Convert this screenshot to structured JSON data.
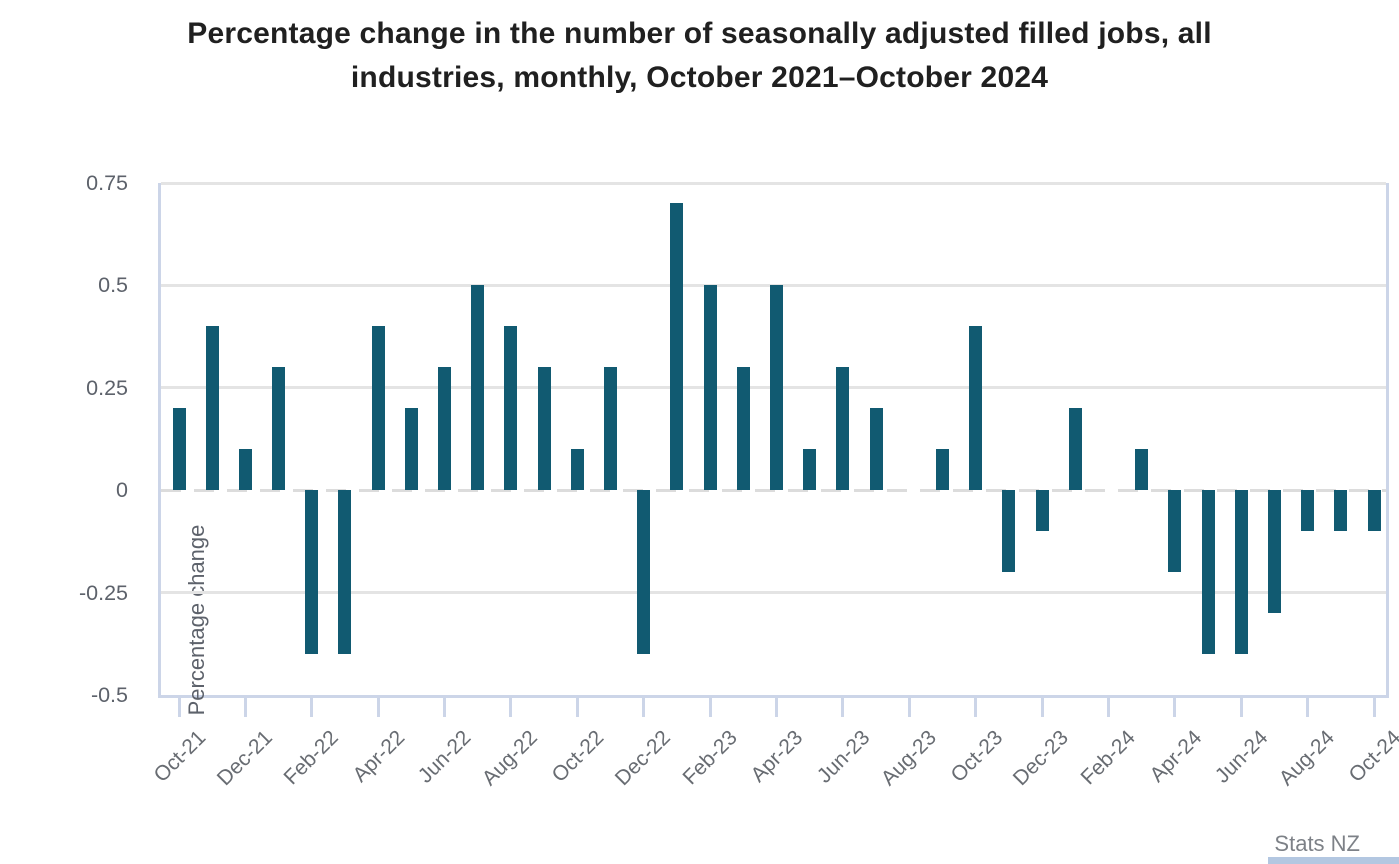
{
  "page": {
    "title_line1": "Percentage change in the number of seasonally adjusted filled jobs, all",
    "title_line2": "industries, monthly, October 2021–October 2024",
    "source": "Stats NZ"
  },
  "colors": {
    "bar": "#115a71",
    "axis": "#ccd5e8",
    "grid": "#e4e4e4",
    "zero_line": "#dcdcdc",
    "title": "#202020",
    "x_labels": "#686c72",
    "y_labels": "#5d626b",
    "source": "#7d8187",
    "logo_bar": "#b3c7e1"
  },
  "chart_data": {
    "type": "bar",
    "title": "Percentage change in the number of seasonally adjusted filled jobs, all industries, monthly, October 2021–October 2024",
    "xlabel": "",
    "ylabel": "Percentage change",
    "ylim": [
      -0.5,
      0.75
    ],
    "y_ticks": [
      0.75,
      0.5,
      0.25,
      0,
      -0.25,
      -0.5
    ],
    "grid": "horizontal, zero line dashed",
    "legend": "none",
    "x_tick_label_rotation": -45,
    "labeled_ticks_every": 2,
    "categories": [
      "Oct-21",
      "Nov-21",
      "Dec-21",
      "Jan-22",
      "Feb-22",
      "Mar-22",
      "Apr-22",
      "May-22",
      "Jun-22",
      "Jul-22",
      "Aug-22",
      "Sep-22",
      "Oct-22",
      "Nov-22",
      "Dec-22",
      "Jan-23",
      "Feb-23",
      "Mar-23",
      "Apr-23",
      "May-23",
      "Jun-23",
      "Jul-23",
      "Aug-23",
      "Sep-23",
      "Oct-23",
      "Nov-23",
      "Dec-23",
      "Jan-24",
      "Feb-24",
      "Mar-24",
      "Apr-24",
      "May-24",
      "Jun-24",
      "Jul-24",
      "Aug-24",
      "Sep-24",
      "Oct-24"
    ],
    "x_tick_labels": [
      "Oct-21",
      "Dec-21",
      "Feb-22",
      "Apr-22",
      "Jun-22",
      "Aug-22",
      "Oct-22",
      "Dec-22",
      "Feb-23",
      "Apr-23",
      "Jun-23",
      "Aug-23",
      "Oct-23",
      "Dec-23",
      "Feb-24",
      "Apr-24",
      "Jun-24",
      "Aug-24",
      "Oct-24"
    ],
    "values": [
      0.2,
      0.4,
      0.1,
      0.3,
      -0.4,
      -0.4,
      0.4,
      0.2,
      0.3,
      0.5,
      0.4,
      0.3,
      0.1,
      0.3,
      -0.4,
      0.7,
      0.5,
      0.3,
      0.5,
      0.1,
      0.3,
      0.2,
      0.0,
      0.1,
      0.4,
      -0.2,
      -0.1,
      0.2,
      0.0,
      0.1,
      -0.2,
      -0.4,
      -0.4,
      -0.3,
      -0.1,
      -0.1,
      -0.1
    ]
  }
}
